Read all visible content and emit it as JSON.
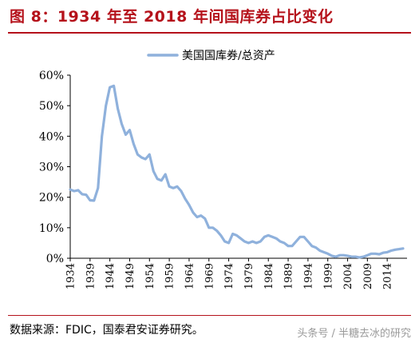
{
  "header": {
    "title": "图 8：1934 年至 2018 年间国库券占比变化"
  },
  "footer": {
    "source": "数据来源：FDIC，国泰君安证券研究。",
    "watermark": "头条号 / 半糖去冰的研究"
  },
  "style": {
    "accent_color": "#b5121b",
    "line_color": "#8fb1dc"
  },
  "chart_data": {
    "type": "line",
    "title": "",
    "xlabel": "",
    "ylabel": "",
    "ylim": [
      0,
      60
    ],
    "xlim": [
      1934,
      2019
    ],
    "grid": false,
    "legend_position": "top-right",
    "y_ticks": [
      "60%",
      "50%",
      "40%",
      "30%",
      "20%",
      "10%",
      "0%"
    ],
    "y_tick_values": [
      60,
      50,
      40,
      30,
      20,
      10,
      0
    ],
    "x_ticks": [
      "1934",
      "1939",
      "1944",
      "1949",
      "1954",
      "1959",
      "1964",
      "1969",
      "1974",
      "1979",
      "1984",
      "1989",
      "1994",
      "1999",
      "2004",
      "2009",
      "2014"
    ],
    "x_tick_values": [
      1934,
      1939,
      1944,
      1949,
      1954,
      1959,
      1964,
      1969,
      1974,
      1979,
      1984,
      1989,
      1994,
      1999,
      2004,
      2009,
      2014
    ],
    "series": [
      {
        "name": "美国国库券/总资产",
        "x": [
          1934,
          1935,
          1936,
          1937,
          1938,
          1939,
          1940,
          1941,
          1942,
          1943,
          1944,
          1945,
          1946,
          1947,
          1948,
          1949,
          1950,
          1951,
          1952,
          1953,
          1954,
          1955,
          1956,
          1957,
          1958,
          1959,
          1960,
          1961,
          1962,
          1963,
          1964,
          1965,
          1966,
          1967,
          1968,
          1969,
          1970,
          1971,
          1972,
          1973,
          1974,
          1975,
          1976,
          1977,
          1978,
          1979,
          1980,
          1981,
          1982,
          1983,
          1984,
          1985,
          1986,
          1987,
          1988,
          1989,
          1990,
          1991,
          1992,
          1993,
          1994,
          1995,
          1996,
          1997,
          1998,
          1999,
          2000,
          2001,
          2002,
          2003,
          2004,
          2005,
          2006,
          2007,
          2008,
          2009,
          2010,
          2011,
          2012,
          2013,
          2014,
          2015,
          2016,
          2017,
          2018
        ],
        "values": [
          22.5,
          22.0,
          22.3,
          21.0,
          20.8,
          19.0,
          18.9,
          23.0,
          40.0,
          50.0,
          56.0,
          56.5,
          49.0,
          44.0,
          40.5,
          42.0,
          37.5,
          34.0,
          33.0,
          32.5,
          34.0,
          28.5,
          26.0,
          25.5,
          27.5,
          23.5,
          23.0,
          23.5,
          22.0,
          19.5,
          17.5,
          15.0,
          13.5,
          14.0,
          13.0,
          10.0,
          10.0,
          9.0,
          7.5,
          5.5,
          5.0,
          8.0,
          7.5,
          6.5,
          5.5,
          5.0,
          5.5,
          5.0,
          5.5,
          7.0,
          7.5,
          7.0,
          6.5,
          5.5,
          5.0,
          4.0,
          4.0,
          5.5,
          7.0,
          7.0,
          5.5,
          4.0,
          3.5,
          2.5,
          2.0,
          1.5,
          0.8,
          0.5,
          1.0,
          1.0,
          0.8,
          0.5,
          0.5,
          0.3,
          0.5,
          1.0,
          1.5,
          1.5,
          1.3,
          1.8,
          2.0,
          2.5,
          2.8,
          3.0,
          3.2
        ]
      }
    ]
  }
}
